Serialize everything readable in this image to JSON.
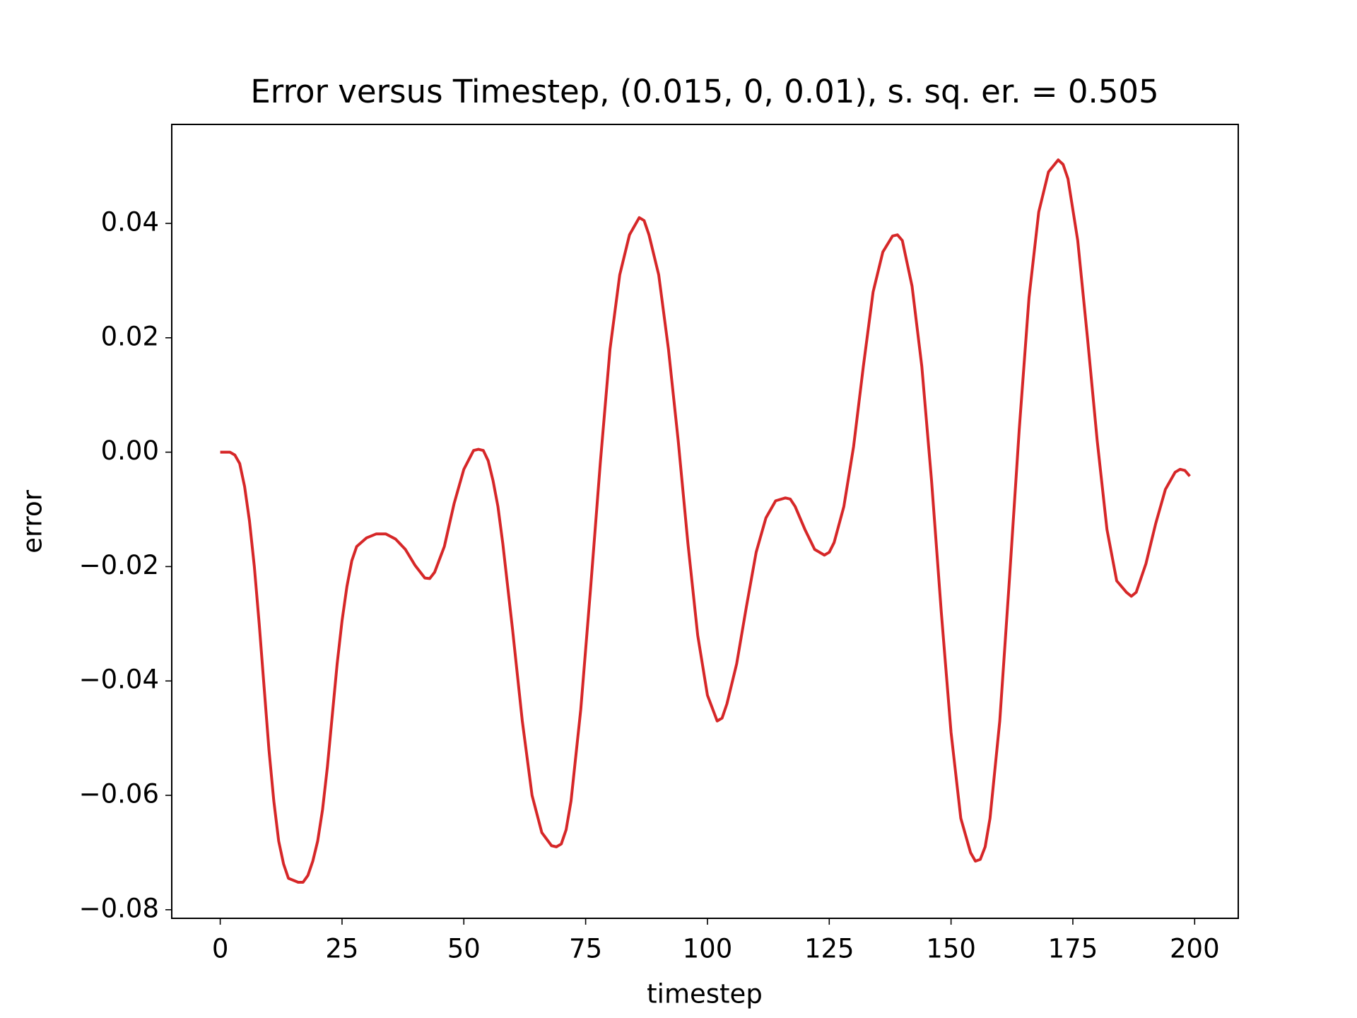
{
  "chart_data": {
    "type": "line",
    "title": "Error versus Timestep, (0.015, 0, 0.01), s. sq. er. = 0.505",
    "x_label": "timestep",
    "y_label": "error",
    "x": [
      0,
      2,
      3,
      4,
      5,
      6,
      7,
      8,
      9,
      10,
      11,
      12,
      13,
      14,
      16,
      17,
      18,
      19,
      20,
      21,
      22,
      23,
      24,
      25,
      26,
      27,
      28,
      30,
      32,
      34,
      36,
      38,
      40,
      42,
      43,
      44,
      46,
      48,
      50,
      52,
      53,
      54,
      55,
      56,
      57,
      58,
      60,
      62,
      64,
      66,
      68,
      69,
      70,
      71,
      72,
      74,
      76,
      78,
      80,
      82,
      84,
      86,
      87,
      88,
      90,
      92,
      94,
      96,
      98,
      100,
      102,
      103,
      104,
      106,
      108,
      110,
      112,
      114,
      116,
      117,
      118,
      120,
      122,
      124,
      125,
      126,
      128,
      130,
      132,
      134,
      136,
      138,
      139,
      140,
      142,
      144,
      146,
      148,
      150,
      152,
      154,
      155,
      156,
      157,
      158,
      160,
      162,
      164,
      166,
      168,
      170,
      172,
      173,
      174,
      176,
      178,
      180,
      182,
      184,
      186,
      187,
      188,
      190,
      192,
      194,
      196,
      197,
      198,
      199
    ],
    "series": [
      {
        "color": "#d62728",
        "values": [
          0,
          0,
          -0.0005,
          -0.002,
          -0.006,
          -0.012,
          -0.02,
          -0.03,
          -0.041,
          -0.052,
          -0.061,
          -0.068,
          -0.072,
          -0.0745,
          -0.0752,
          -0.0752,
          -0.074,
          -0.0715,
          -0.068,
          -0.0625,
          -0.055,
          -0.046,
          -0.037,
          -0.0295,
          -0.0235,
          -0.019,
          -0.0165,
          -0.015,
          -0.0143,
          -0.0143,
          -0.0152,
          -0.017,
          -0.0198,
          -0.022,
          -0.0221,
          -0.021,
          -0.0165,
          -0.009,
          -0.003,
          0.0003,
          0.0005,
          0.0003,
          -0.0015,
          -0.005,
          -0.0095,
          -0.016,
          -0.031,
          -0.047,
          -0.06,
          -0.0665,
          -0.0688,
          -0.069,
          -0.0685,
          -0.066,
          -0.061,
          -0.045,
          -0.024,
          -0.002,
          0.018,
          0.031,
          0.038,
          0.041,
          0.0405,
          0.038,
          0.031,
          0.018,
          0.002,
          -0.016,
          -0.032,
          -0.0425,
          -0.047,
          -0.0465,
          -0.044,
          -0.037,
          -0.027,
          -0.0175,
          -0.0115,
          -0.0085,
          -0.008,
          -0.0082,
          -0.0095,
          -0.0135,
          -0.017,
          -0.018,
          -0.0175,
          -0.0158,
          -0.0095,
          0.001,
          0.015,
          0.028,
          0.035,
          0.0378,
          0.038,
          0.037,
          0.029,
          0.015,
          -0.005,
          -0.028,
          -0.049,
          -0.064,
          -0.07,
          -0.0715,
          -0.0712,
          -0.069,
          -0.064,
          -0.047,
          -0.022,
          0.004,
          0.027,
          0.042,
          0.049,
          0.0511,
          0.0503,
          0.0478,
          0.037,
          0.02,
          0.002,
          -0.0135,
          -0.0225,
          -0.0245,
          -0.0252,
          -0.0245,
          -0.0195,
          -0.0125,
          -0.0065,
          -0.0035,
          -0.003,
          -0.0032,
          -0.0042
        ]
      }
    ],
    "xlim": [
      -9.95,
      208.95
    ],
    "xticks": [
      0,
      25,
      50,
      75,
      100,
      125,
      150,
      175,
      200
    ],
    "ylim": [
      -0.0815,
      0.0573
    ],
    "yticks": [
      {
        "value": -0.08,
        "label": "−0.08"
      },
      {
        "value": -0.06,
        "label": "−0.06"
      },
      {
        "value": -0.04,
        "label": "−0.04"
      },
      {
        "value": -0.02,
        "label": "−0.02"
      },
      {
        "value": 0,
        "label": "0.00"
      },
      0.02,
      0.04
    ],
    "grid": false
  }
}
